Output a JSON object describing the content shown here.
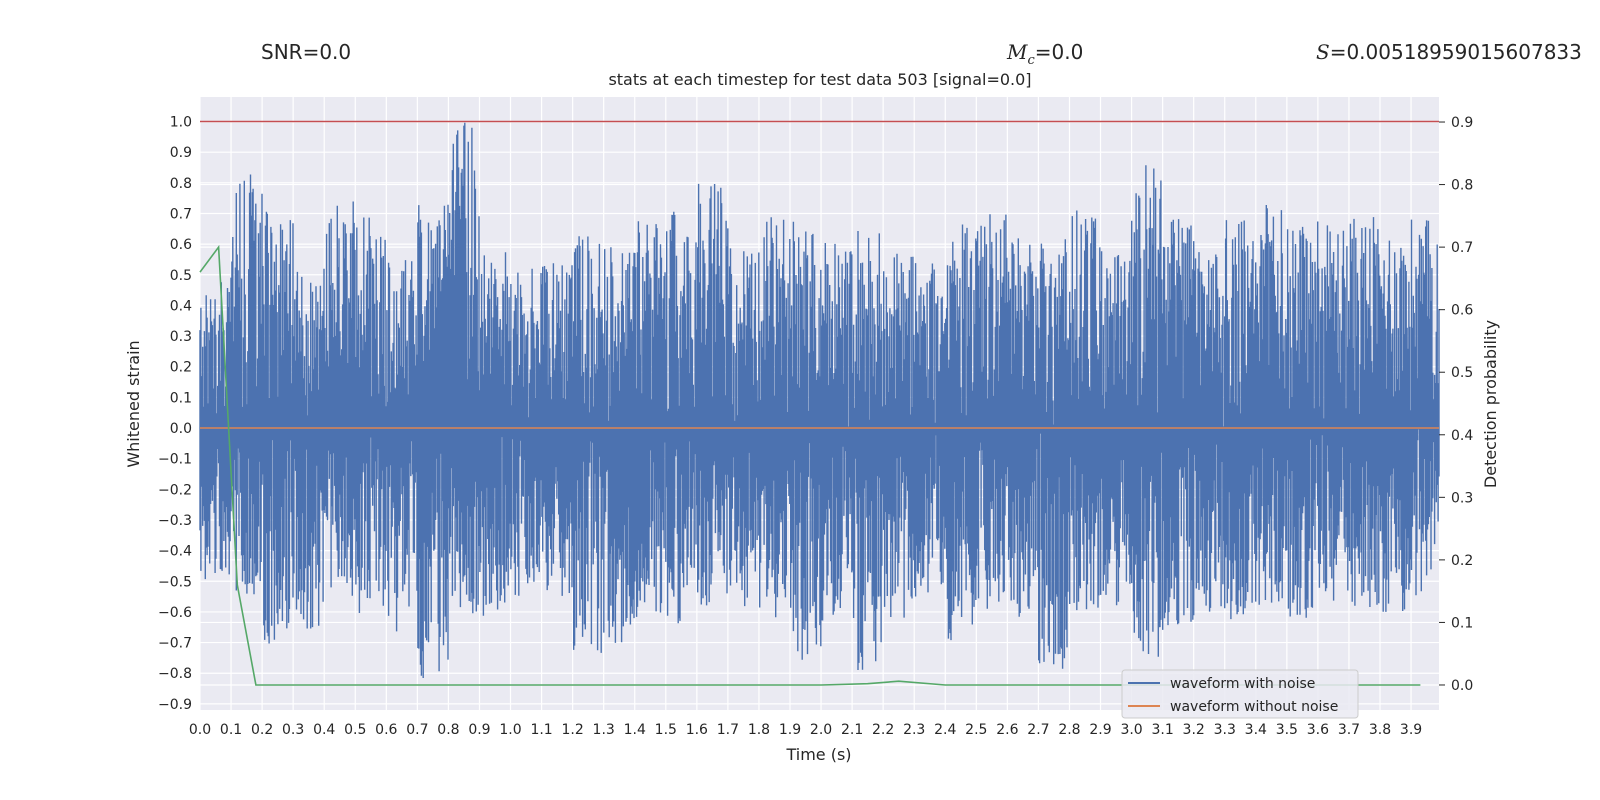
{
  "header": {
    "snr_label": "SNR",
    "snr_value": "=0.0",
    "mc_label": "M",
    "mc_sub": "c",
    "mc_value": "=0.0",
    "s_label": "S",
    "s_value": "=0.00518959015607833"
  },
  "chart_data": {
    "type": "line",
    "title": "stats at each timestep for test data 503 [signal=0.0]",
    "xlabel": "Time (s)",
    "ylabel": "Whitened strain",
    "y2label": "Detection probability",
    "xlim": [
      0.0,
      3.99
    ],
    "ylim": [
      -0.92,
      1.08
    ],
    "y2lim": [
      -0.04,
      0.94
    ],
    "xticks": [
      "0.0",
      "0.1",
      "0.2",
      "0.3",
      "0.4",
      "0.5",
      "0.6",
      "0.7",
      "0.8",
      "0.9",
      "1.0",
      "1.1",
      "1.2",
      "1.3",
      "1.4",
      "1.5",
      "1.6",
      "1.7",
      "1.8",
      "1.9",
      "2.0",
      "2.1",
      "2.2",
      "2.3",
      "2.4",
      "2.5",
      "2.6",
      "2.7",
      "2.8",
      "2.9",
      "3.0",
      "3.1",
      "3.2",
      "3.3",
      "3.4",
      "3.5",
      "3.6",
      "3.7",
      "3.8",
      "3.9"
    ],
    "yticks": [
      "1.0",
      "0.9",
      "0.8",
      "0.7",
      "0.6",
      "0.5",
      "0.4",
      "0.3",
      "0.2",
      "0.1",
      "0.0",
      "−0.1",
      "−0.2",
      "−0.3",
      "−0.4",
      "−0.5",
      "−0.6",
      "−0.7",
      "−0.8",
      "−0.9"
    ],
    "y2ticks": [
      "0.9",
      "0.8",
      "0.7",
      "0.6",
      "0.5",
      "0.4",
      "0.3",
      "0.2",
      "0.1",
      "0.0"
    ],
    "grid": true,
    "legend_position": "lower-right",
    "series": [
      {
        "name": "waveform with noise",
        "axis": "left",
        "color": "#4c72b0",
        "description": "dense noise trace filling roughly -0.8 to 1.0",
        "envelope_upper": [
          0.5,
          0.83,
          0.72,
          0.52,
          0.74,
          0.71,
          0.58,
          0.74,
          1.0,
          0.59,
          0.52,
          0.54,
          0.63,
          0.59,
          0.69,
          0.72,
          0.81,
          0.61,
          0.69,
          0.71,
          0.61,
          0.65,
          0.58,
          0.55,
          0.68,
          0.71,
          0.62,
          0.63,
          0.71,
          0.58,
          0.88,
          0.69,
          0.59,
          0.68,
          0.73,
          0.71,
          0.67,
          0.69,
          0.66,
          0.69
        ],
        "envelope_lower": [
          -0.5,
          -0.55,
          -0.73,
          -0.66,
          -0.55,
          -0.61,
          -0.68,
          -0.83,
          -0.64,
          -0.62,
          -0.58,
          -0.55,
          -0.74,
          -0.71,
          -0.62,
          -0.64,
          -0.58,
          -0.59,
          -0.62,
          -0.76,
          -0.64,
          -0.79,
          -0.62,
          -0.55,
          -0.7,
          -0.6,
          -0.63,
          -0.79,
          -0.6,
          -0.58,
          -0.75,
          -0.66,
          -0.6,
          -0.63,
          -0.58,
          -0.62,
          -0.58,
          -0.6,
          -0.6,
          -0.55
        ]
      },
      {
        "name": "waveform without noise",
        "axis": "left",
        "color": "#dd8452",
        "x": [
          0.0,
          3.99
        ],
        "values": [
          0.0,
          0.0
        ]
      },
      {
        "axis": "right",
        "color": "#55a868",
        "x": [
          0.0,
          0.06,
          0.12,
          0.18,
          0.24,
          0.6,
          1.0,
          2.0,
          2.15,
          2.25,
          2.4,
          2.8,
          3.0,
          3.5,
          3.93
        ],
        "values": [
          0.66,
          0.7,
          0.16,
          0.0,
          0.0,
          0.0,
          0.0,
          0.0,
          0.002,
          0.006,
          0.0,
          0.0,
          0.0,
          0.0,
          0.0
        ]
      },
      {
        "axis": "left",
        "color": "#c44e52",
        "x": [
          0.0,
          3.99
        ],
        "values": [
          1.0,
          1.0
        ]
      }
    ]
  }
}
